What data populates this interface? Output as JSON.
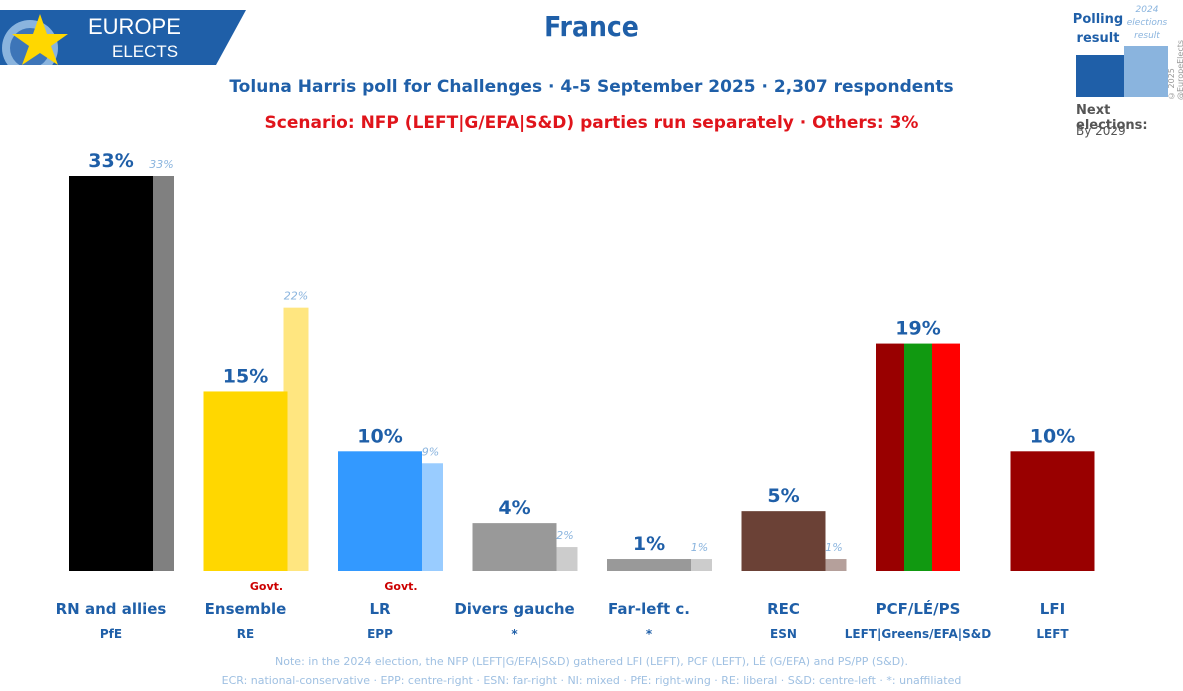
{
  "logo": {
    "line1": "EUROPE",
    "line2": "ELECTS"
  },
  "header": {
    "title": "France",
    "subtitle": "Toluna Harris poll for Challenges · 4-5 September 2025 · 2,307 respondents",
    "scenario": "Scenario: NFP (LEFT|G/EFA|S&D) parties run separately · Others: 3%"
  },
  "legend": {
    "poll_label": "Polling result",
    "result_label": "2024 elections result",
    "next_label": "Next elections:",
    "next_value": "By 2029",
    "copyright": "© 2025 @EuropeElects",
    "poll_color": "#1f5fa8",
    "result_color": "#8ab4de"
  },
  "chart_data": {
    "type": "bar",
    "title": "France",
    "ylim": [
      0,
      33
    ],
    "categories": [
      "RN and allies",
      "Ensemble",
      "LR",
      "Divers gauche",
      "Far-left c.",
      "REC",
      "PCF/LÉ/PS",
      "LFI"
    ],
    "groups": [
      "PfE",
      "RE",
      "EPP",
      "*",
      "*",
      "ESN",
      "LEFT|Greens/EFA|S&D",
      "LEFT"
    ],
    "series": [
      {
        "name": "Polling result",
        "values": [
          33,
          15,
          10,
          4,
          1,
          5,
          19,
          10
        ],
        "labels": [
          "33%",
          "15%",
          "10%",
          "4%",
          "1%",
          "5%",
          "19%",
          "10%"
        ]
      },
      {
        "name": "2024 elections result",
        "values": [
          33,
          22,
          9,
          2,
          1,
          1,
          null,
          null
        ],
        "labels": [
          "33%",
          "22%",
          "9%",
          "2%",
          "1%",
          "1%",
          "",
          ""
        ]
      }
    ],
    "govt": [
      "",
      "Govt.",
      "Govt.",
      "",
      "",
      "",
      "",
      ""
    ],
    "colors": {
      "poll": [
        "#000000",
        "#ffd700",
        "#3399ff",
        "#999999",
        "#999999",
        "#6b4136",
        "stripes",
        "#990000"
      ],
      "result": [
        "#808080",
        "#ffe680",
        "#99ccff",
        "#cccccc",
        "#cccccc",
        "#b5a09b",
        "",
        ""
      ],
      "stripes": [
        "#990000",
        "#119911",
        "#ff0000"
      ]
    },
    "grid": false
  },
  "notes": {
    "line1": "Note: in the 2024 election, the NFP (LEFT|G/EFA|S&D) gathered LFI (LEFT), PCF (LEFT), LÉ (G/EFA) and PS/PP (S&D).",
    "line2": "ECR: national-conservative · EPP: centre-right · ESN: far-right · NI: mixed · PfE: right-wing · RE: liberal · S&D: centre-left · *: unaffiliated"
  }
}
